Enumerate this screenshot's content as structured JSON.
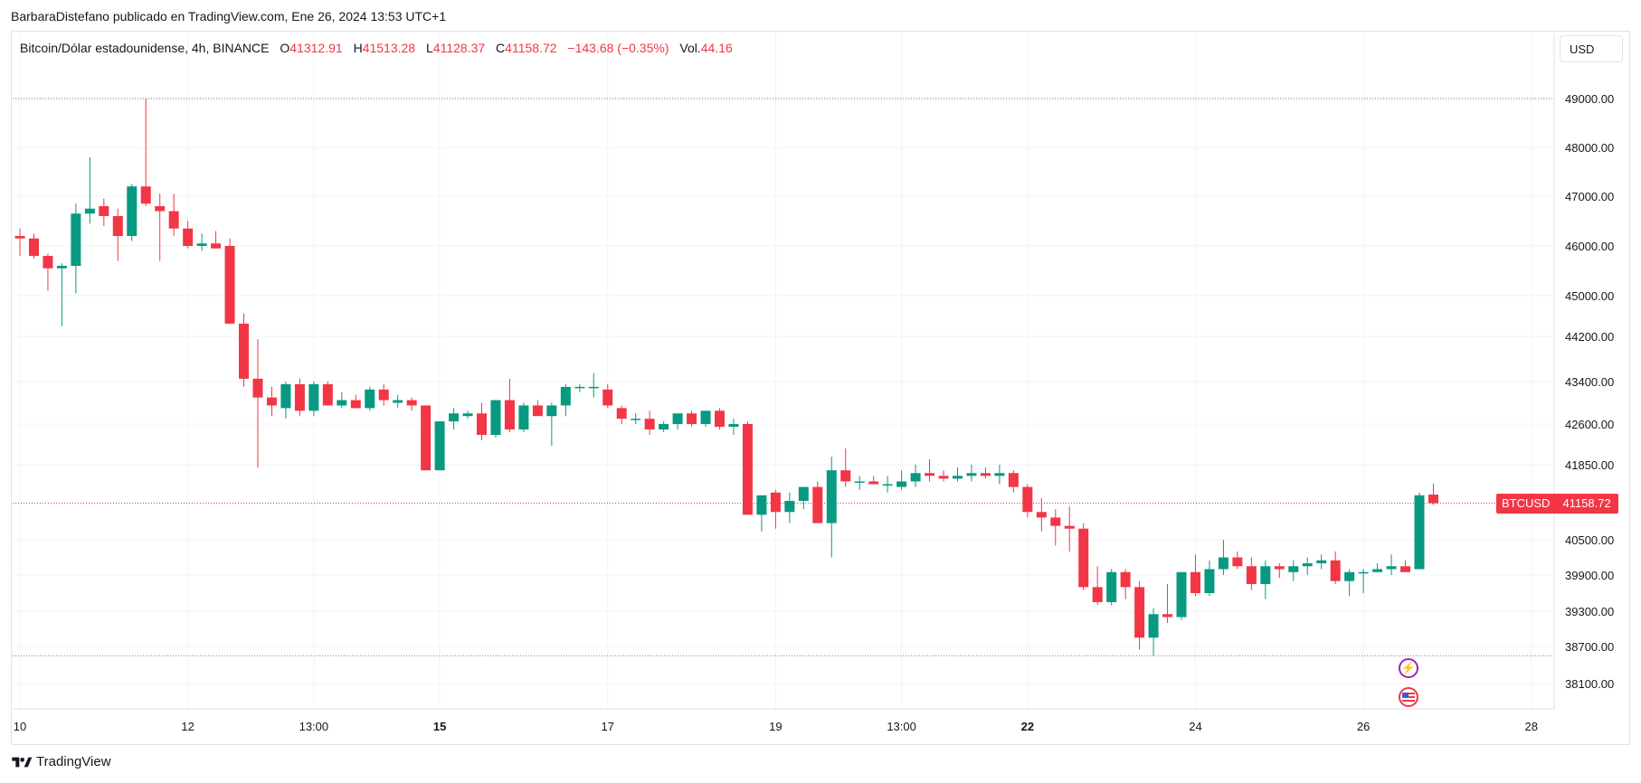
{
  "caption": "BarbaraDistefano publicado en TradingView.com, Ene 26, 2024 13:53 UTC+1",
  "legend": {
    "symbol": "Bitcoin/Dólar estadounidense, 4h, BINANCE",
    "o_label": "O",
    "o_value": "41312.91",
    "h_label": "H",
    "h_value": "41513.28",
    "l_label": "L",
    "l_value": "41128.37",
    "c_label": "C",
    "c_value": "41158.72",
    "change": "−143.68 (−0.35%)",
    "vol_label": "Vol.",
    "vol_value": "44.16"
  },
  "currency_button": "USD",
  "last_price": {
    "symbol": "BTCUSD",
    "value": "41158.72"
  },
  "brand": "TradingView",
  "events": {
    "flash_icon": "lightning-icon",
    "flag_icon": "us-flag-icon"
  },
  "colors": {
    "up": "#089981",
    "down": "#f23645",
    "grid": "#f0f3fa",
    "axis_text": "#131722"
  },
  "chart_data": {
    "type": "candlestick",
    "interval": "4h",
    "y_ticks": [
      49000,
      48000,
      47000,
      46000,
      45000,
      44200,
      43400,
      42600,
      41850,
      40500,
      39900,
      39300,
      38700,
      38100
    ],
    "x_ticks": [
      {
        "label": "10",
        "bold": false,
        "i": 0
      },
      {
        "label": "12",
        "bold": false,
        "i": 12
      },
      {
        "label": "13:00",
        "bold": false,
        "i": 21
      },
      {
        "label": "15",
        "bold": true,
        "i": 30
      },
      {
        "label": "17",
        "bold": false,
        "i": 42
      },
      {
        "label": "19",
        "bold": false,
        "i": 54
      },
      {
        "label": "13:00",
        "bold": false,
        "i": 63
      },
      {
        "label": "22",
        "bold": true,
        "i": 72
      },
      {
        "label": "24",
        "bold": false,
        "i": 84
      },
      {
        "label": "26",
        "bold": false,
        "i": 96
      },
      {
        "label": "28",
        "bold": false,
        "i": 108
      }
    ],
    "ref_lines": [
      49000,
      38550
    ],
    "last_close": 41158.72,
    "candles": [
      [
        46200,
        46350,
        45800,
        46150
      ],
      [
        46150,
        46250,
        45750,
        45800
      ],
      [
        45800,
        45850,
        45100,
        45550
      ],
      [
        45550,
        45650,
        44400,
        45600
      ],
      [
        45600,
        46850,
        45050,
        46650
      ],
      [
        46650,
        47800,
        46450,
        46750
      ],
      [
        46800,
        46950,
        46400,
        46600
      ],
      [
        46600,
        46750,
        45700,
        46200
      ],
      [
        46200,
        47250,
        46100,
        47200
      ],
      [
        47200,
        49000,
        46800,
        46850
      ],
      [
        46800,
        47050,
        45700,
        46700
      ],
      [
        46700,
        47050,
        46200,
        46350
      ],
      [
        46350,
        46500,
        45950,
        46000
      ],
      [
        46000,
        46250,
        45900,
        46050
      ],
      [
        46050,
        46300,
        45950,
        45950
      ],
      [
        46000,
        46150,
        44450,
        44450
      ],
      [
        44450,
        44650,
        43300,
        43450
      ],
      [
        43450,
        44150,
        41800,
        43100
      ],
      [
        43100,
        43300,
        42750,
        42950
      ],
      [
        42900,
        43400,
        42700,
        43350
      ],
      [
        43350,
        43450,
        42750,
        42850
      ],
      [
        42850,
        43400,
        42750,
        43350
      ],
      [
        43350,
        43400,
        42950,
        42950
      ],
      [
        42950,
        43200,
        42900,
        43050
      ],
      [
        43050,
        43150,
        42900,
        42900
      ],
      [
        42900,
        43300,
        42850,
        43250
      ],
      [
        43250,
        43350,
        42950,
        43050
      ],
      [
        43000,
        43150,
        42900,
        43050
      ],
      [
        43050,
        43100,
        42850,
        42950
      ],
      [
        42950,
        42950,
        41750,
        41750
      ],
      [
        41750,
        42650,
        41750,
        42650
      ],
      [
        42650,
        42900,
        42500,
        42800
      ],
      [
        42750,
        42850,
        42700,
        42800
      ],
      [
        42800,
        43000,
        42300,
        42400
      ],
      [
        42400,
        43050,
        42350,
        43050
      ],
      [
        43050,
        43450,
        42450,
        42500
      ],
      [
        42500,
        43000,
        42450,
        42950
      ],
      [
        42950,
        43050,
        42850,
        42750
      ],
      [
        42750,
        43000,
        42200,
        42950
      ],
      [
        42950,
        43350,
        42750,
        43300
      ],
      [
        43300,
        43350,
        43200,
        43300
      ],
      [
        43300,
        43550,
        43100,
        43300
      ],
      [
        43250,
        43350,
        42900,
        42950
      ],
      [
        42900,
        42950,
        42600,
        42700
      ],
      [
        42700,
        42800,
        42600,
        42700
      ],
      [
        42700,
        42850,
        42400,
        42500
      ],
      [
        42500,
        42650,
        42450,
        42600
      ],
      [
        42600,
        42800,
        42500,
        42800
      ],
      [
        42800,
        42850,
        42550,
        42600
      ],
      [
        42600,
        42850,
        42550,
        42850
      ],
      [
        42850,
        42900,
        42500,
        42550
      ],
      [
        42550,
        42700,
        42400,
        42600
      ],
      [
        42600,
        42650,
        40950,
        40950
      ],
      [
        40950,
        41300,
        40650,
        41300
      ],
      [
        41350,
        41400,
        40700,
        41000
      ],
      [
        41000,
        41350,
        40800,
        41200
      ],
      [
        41200,
        41450,
        41050,
        41450
      ],
      [
        41450,
        41550,
        40900,
        40800
      ],
      [
        40800,
        42000,
        40200,
        41750
      ],
      [
        41750,
        42150,
        41450,
        41550
      ],
      [
        41550,
        41650,
        41400,
        41550
      ],
      [
        41550,
        41650,
        41500,
        41500
      ],
      [
        41500,
        41650,
        41350,
        41500
      ],
      [
        41450,
        41750,
        41400,
        41550
      ],
      [
        41550,
        41850,
        41450,
        41700
      ],
      [
        41700,
        41950,
        41550,
        41650
      ],
      [
        41650,
        41750,
        41550,
        41600
      ],
      [
        41600,
        41800,
        41550,
        41650
      ],
      [
        41650,
        41850,
        41550,
        41700
      ],
      [
        41700,
        41800,
        41600,
        41650
      ],
      [
        41650,
        41850,
        41500,
        41700
      ],
      [
        41700,
        41750,
        41350,
        41450
      ],
      [
        41450,
        41500,
        40900,
        41000
      ],
      [
        41000,
        41250,
        40650,
        40900
      ],
      [
        40900,
        41050,
        40400,
        40750
      ],
      [
        40750,
        41100,
        40300,
        40700
      ],
      [
        40700,
        40800,
        39650,
        39700
      ],
      [
        39700,
        40050,
        39400,
        39450
      ],
      [
        39450,
        40000,
        39400,
        39950
      ],
      [
        39950,
        40000,
        39500,
        39700
      ],
      [
        39700,
        39800,
        38650,
        38850
      ],
      [
        38850,
        39350,
        38550,
        39250
      ],
      [
        39250,
        39750,
        39100,
        39200
      ],
      [
        39200,
        39950,
        39150,
        39950
      ],
      [
        39950,
        40250,
        39550,
        39600
      ],
      [
        39600,
        40150,
        39550,
        40000
      ],
      [
        40000,
        40500,
        39900,
        40200
      ],
      [
        40200,
        40300,
        40000,
        40050
      ],
      [
        40050,
        40200,
        39650,
        39750
      ],
      [
        39750,
        40150,
        39500,
        40050
      ],
      [
        40050,
        40100,
        39850,
        40000
      ],
      [
        39950,
        40150,
        39800,
        40050
      ],
      [
        40050,
        40200,
        39900,
        40100
      ],
      [
        40100,
        40250,
        40000,
        40150
      ],
      [
        40150,
        40300,
        39750,
        39800
      ],
      [
        39800,
        40000,
        39550,
        39950
      ],
      [
        39950,
        40000,
        39600,
        39950
      ],
      [
        39950,
        40100,
        39950,
        40000
      ],
      [
        40000,
        40250,
        39900,
        40050
      ],
      [
        40050,
        40150,
        39950,
        39950
      ],
      [
        40000,
        41350,
        40000,
        41300
      ],
      [
        41313,
        41513,
        41128,
        41159
      ]
    ]
  }
}
